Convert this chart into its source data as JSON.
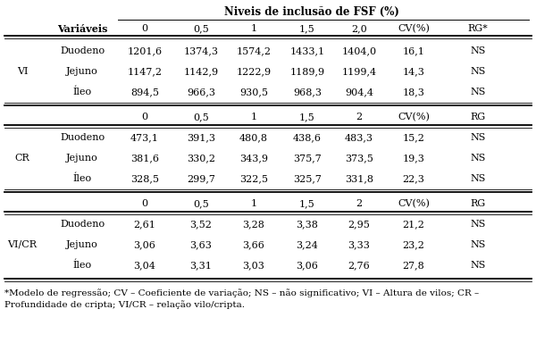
{
  "title": "Niveis de inclusão de FSF (%)",
  "col_headers1": [
    "0",
    "0,5",
    "1",
    "1,5",
    "2,0",
    "CV(%)",
    "RG*"
  ],
  "col_headers2": [
    "0",
    "0,5",
    "1",
    "1,5",
    "2",
    "CV(%)",
    "RG"
  ],
  "section1_label": "VI",
  "section1_rows": [
    [
      "Duodeno",
      "1201,6",
      "1374,3",
      "1574,2",
      "1433,1",
      "1404,0",
      "16,1",
      "NS"
    ],
    [
      "Jejuno",
      "1147,2",
      "1142,9",
      "1222,9",
      "1189,9",
      "1199,4",
      "14,3",
      "NS"
    ],
    [
      "Íleo",
      "894,5",
      "966,3",
      "930,5",
      "968,3",
      "904,4",
      "18,3",
      "NS"
    ]
  ],
  "section2_label": "CR",
  "section2_rows": [
    [
      "Duodeno",
      "473,1",
      "391,3",
      "480,8",
      "438,6",
      "483,3",
      "15,2",
      "NS"
    ],
    [
      "Jejuno",
      "381,6",
      "330,2",
      "343,9",
      "375,7",
      "373,5",
      "19,3",
      "NS"
    ],
    [
      "Íleo",
      "328,5",
      "299,7",
      "322,5",
      "325,7",
      "331,8",
      "22,3",
      "NS"
    ]
  ],
  "section3_label": "VI/CR",
  "section3_rows": [
    [
      "Duodeno",
      "2,61",
      "3,52",
      "3,28",
      "3,38",
      "2,95",
      "21,2",
      "NS"
    ],
    [
      "Jejuno",
      "3,06",
      "3,63",
      "3,66",
      "3,24",
      "3,33",
      "23,2",
      "NS"
    ],
    [
      "Íleo",
      "3,04",
      "3,31",
      "3,03",
      "3,06",
      "2,76",
      "27,8",
      "NS"
    ]
  ],
  "footnote1": "*Modelo de regressão; CV – Coeficiente de variação; NS – não significativo; VI – Altura de vilos; CR –",
  "footnote2": "Profundidade de cripta; VI/CR – relação vilo/cripta.",
  "bg_color": "#ffffff",
  "text_color": "#000000",
  "fs": 8.0,
  "fs_title": 8.5,
  "fs_foot": 7.5
}
